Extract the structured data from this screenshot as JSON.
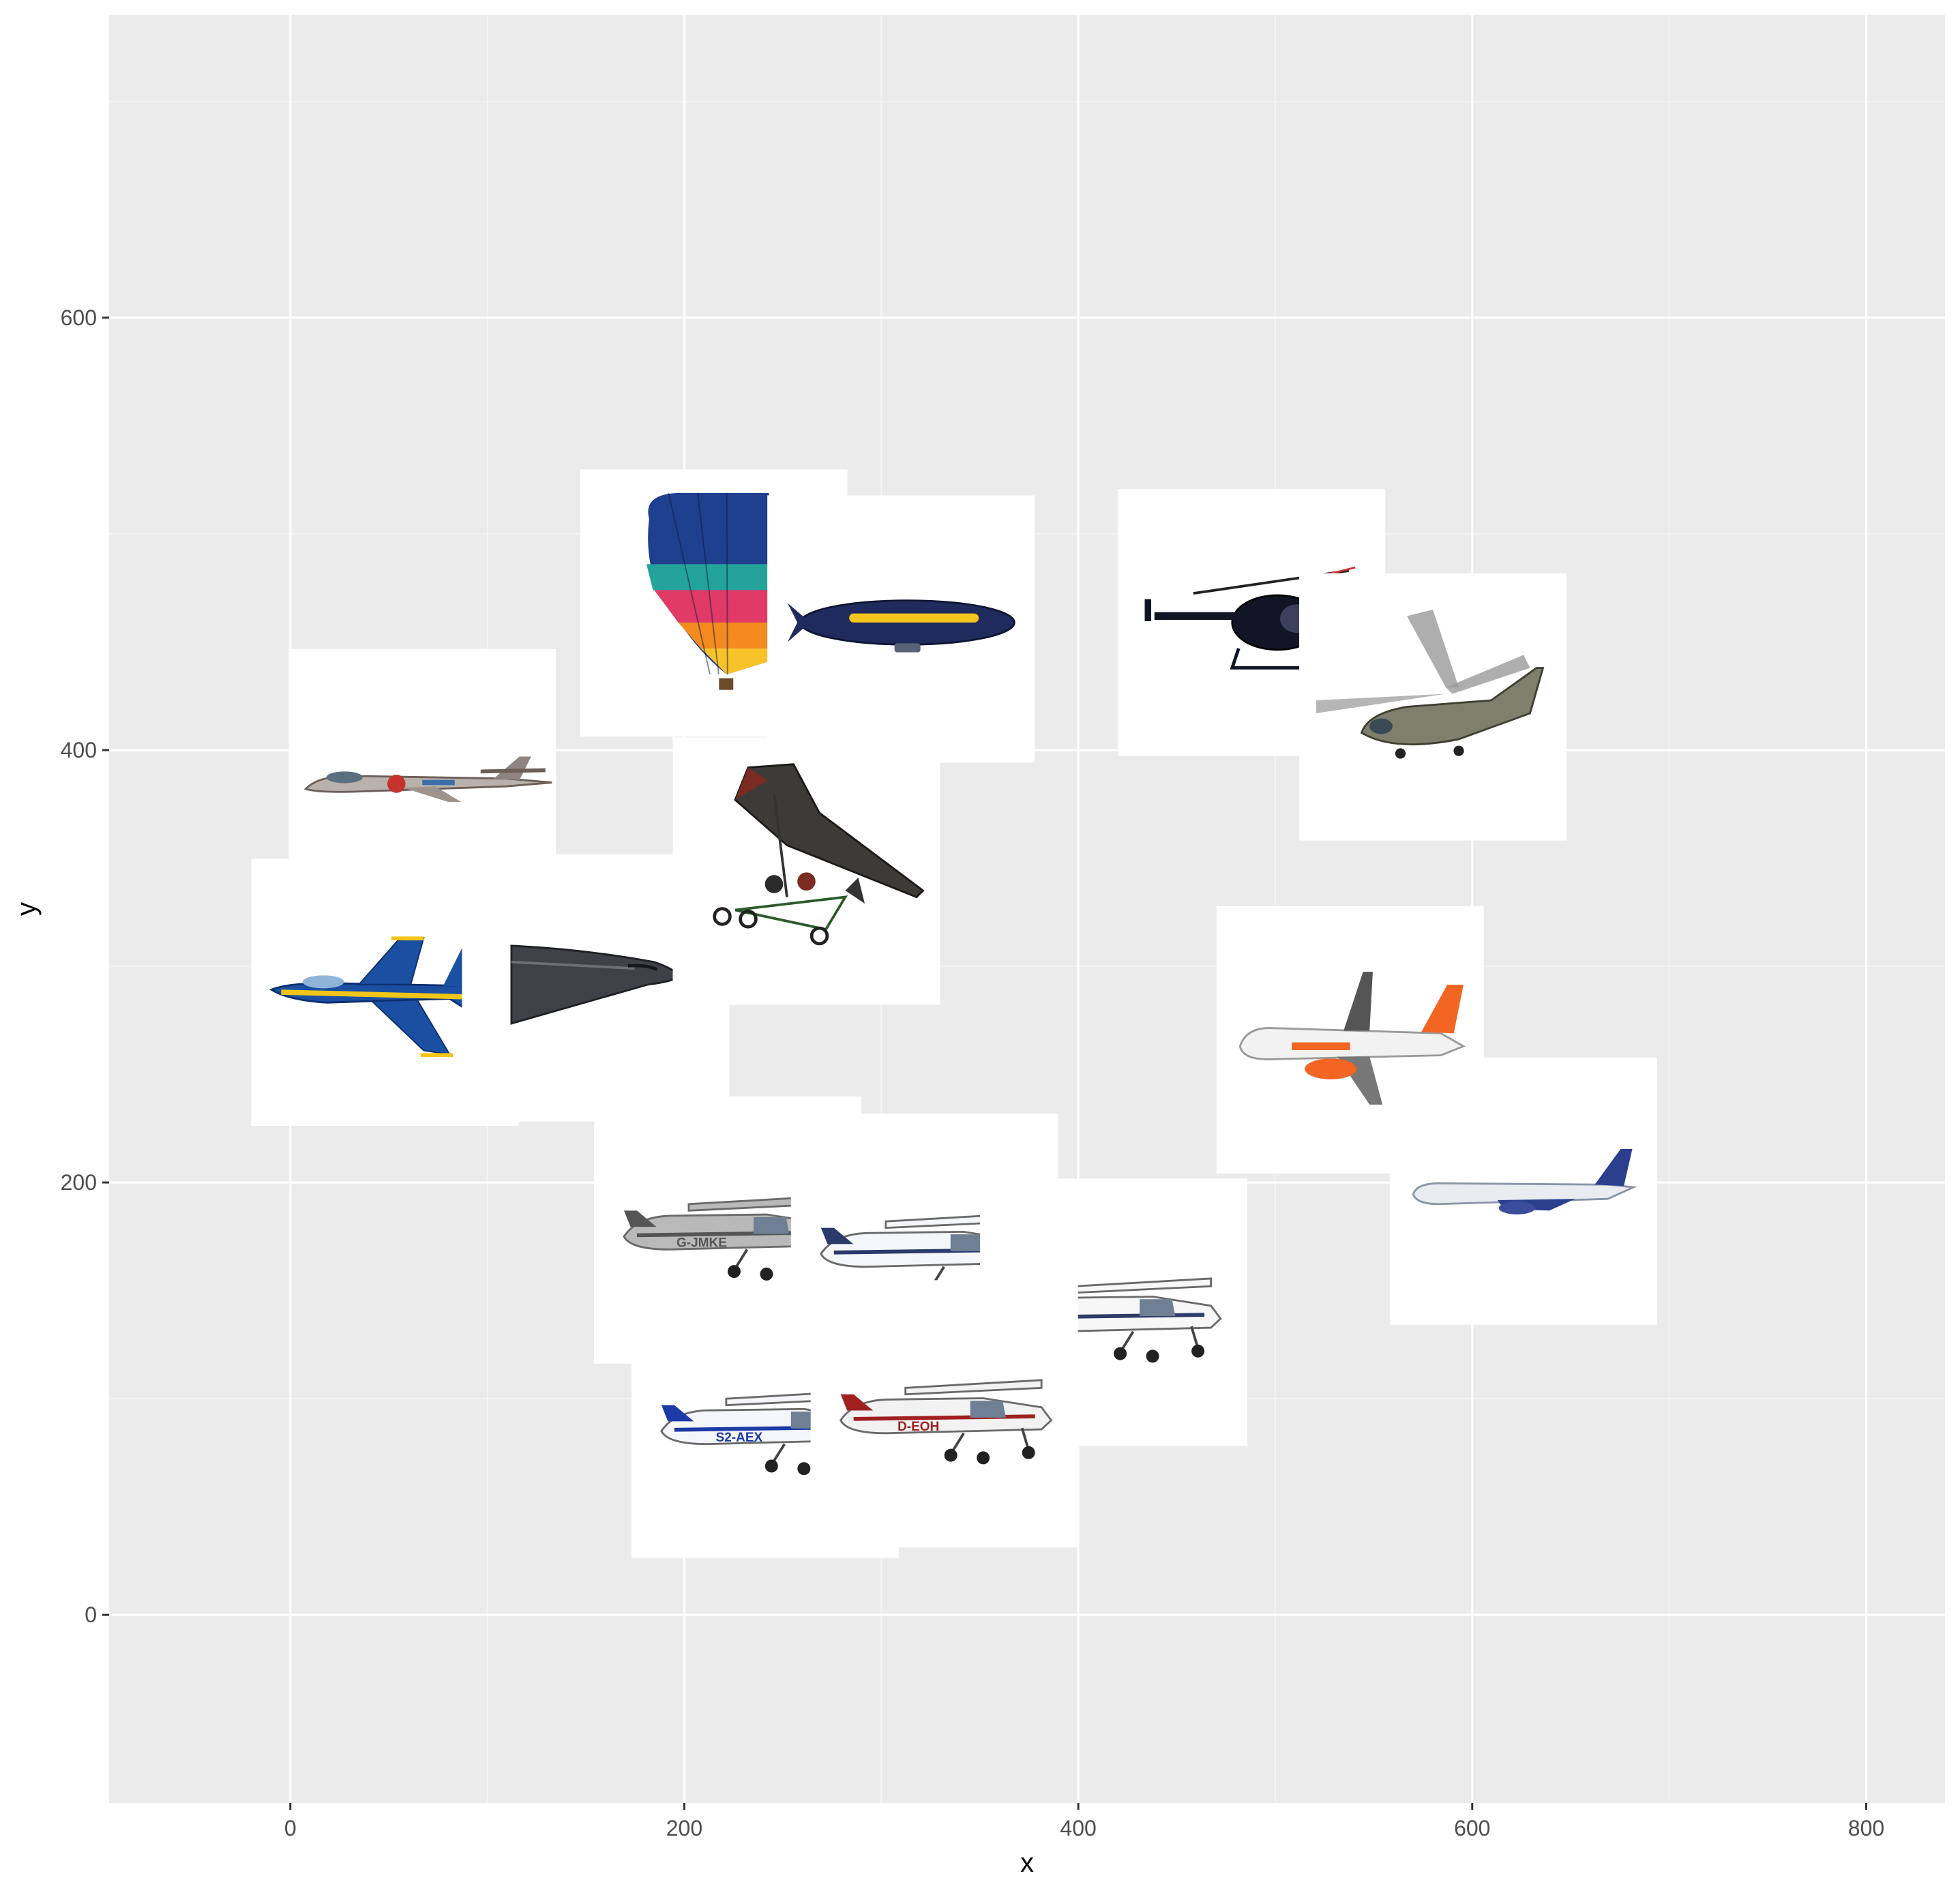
{
  "chart_data": {
    "type": "scatter",
    "title": "",
    "xlabel": "x",
    "ylabel": "y",
    "xlim": [
      -92,
      840
    ],
    "ylim": [
      -87,
      740
    ],
    "x_ticks": [
      0,
      200,
      400,
      600,
      800
    ],
    "y_ticks": [
      0,
      200,
      400,
      600
    ],
    "grid": true,
    "legend": "none",
    "points": [
      {
        "x": 67,
        "y": 385,
        "image": "jet-fighter-silver-icon"
      },
      {
        "x": 48,
        "y": 288,
        "image": "fa18-hornet-blue-angels-icon"
      },
      {
        "x": 155,
        "y": 290,
        "image": "b2-stealth-bomber-icon"
      },
      {
        "x": 215,
        "y": 468,
        "image": "hot-air-balloon-icon"
      },
      {
        "x": 310,
        "y": 456,
        "image": "goodyear-blimp-icon"
      },
      {
        "x": 262,
        "y": 344,
        "image": "ultralight-trike-icon"
      },
      {
        "x": 488,
        "y": 459,
        "image": "md500-helicopter-icon"
      },
      {
        "x": 580,
        "y": 420,
        "image": "super-puma-helicopter-icon"
      },
      {
        "x": 538,
        "y": 266,
        "image": "easyjet-airliner-icon"
      },
      {
        "x": 626,
        "y": 196,
        "image": "boeing-737-airliner-icon"
      },
      {
        "x": 222,
        "y": 178,
        "image": "cessna-g-jmke-icon"
      },
      {
        "x": 322,
        "y": 170,
        "image": "cessna-tail-number-icon"
      },
      {
        "x": 418,
        "y": 140,
        "image": "cessna-white-icon"
      },
      {
        "x": 241,
        "y": 88,
        "image": "cessna-s2-aex-icon"
      },
      {
        "x": 332,
        "y": 93,
        "image": "cessna-d-eoh-icon"
      }
    ]
  },
  "colors": {
    "panel": "#ebebeb",
    "grid_major": "#ffffff",
    "grid_minor": "#f5f5f5",
    "tile": "#ffffff"
  }
}
